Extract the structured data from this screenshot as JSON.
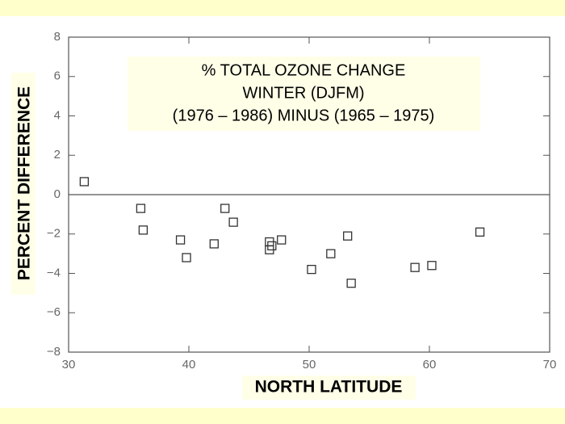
{
  "chart_data": {
    "type": "scatter",
    "title_lines": [
      "% TOTAL OZONE CHANGE",
      "WINTER (DJFM)",
      "(1976 – 1986) MINUS (1965 – 1975)"
    ],
    "x_label": "NORTH LATITUDE",
    "y_label": "PERCENT DIFFERENCE",
    "x": [
      31.3,
      36.0,
      36.2,
      39.3,
      39.8,
      42.1,
      43.0,
      43.7,
      46.7,
      46.7,
      46.9,
      47.7,
      50.2,
      51.8,
      53.2,
      53.5,
      58.8,
      60.2,
      64.2
    ],
    "values": [
      0.66,
      -0.7,
      -1.8,
      -2.3,
      -3.2,
      -2.5,
      -0.7,
      -1.4,
      -2.4,
      -2.8,
      -2.6,
      -2.3,
      -3.8,
      -3.0,
      -2.1,
      -4.5,
      -3.7,
      -3.6,
      -1.9
    ],
    "color": "#333333",
    "xlim": [
      30,
      70
    ],
    "xticks": [
      30,
      40,
      50,
      60,
      70
    ],
    "ylim": [
      -8,
      8
    ],
    "yticks": [
      {
        "value": -8,
        "label": "−8"
      },
      {
        "value": -6,
        "label": "−6"
      },
      {
        "value": -4,
        "label": "−4"
      },
      {
        "value": -2,
        "label": "−2"
      },
      0,
      2,
      4,
      6,
      8
    ],
    "zero_line": true
  }
}
